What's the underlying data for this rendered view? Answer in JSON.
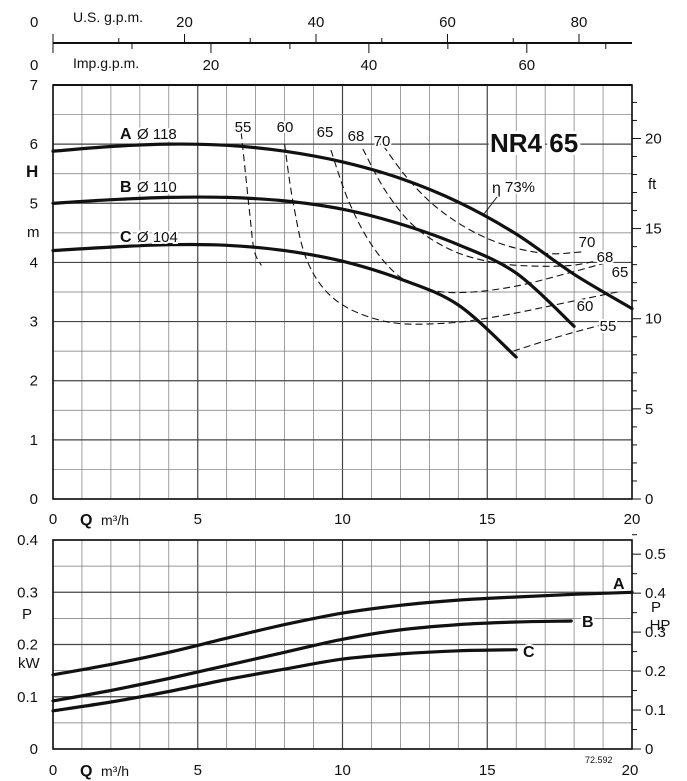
{
  "chart_data": [
    {
      "type": "line",
      "title": "NR4 65",
      "x_label_symbol": "Q",
      "x_label_unit": "m³/h",
      "x_ticks": [
        "0",
        "5",
        "10",
        "15",
        "20"
      ],
      "xlim": [
        0,
        20
      ],
      "y_label_symbol": "H",
      "y_label_unit": "m",
      "y_ticks": [
        "0",
        "1",
        "2",
        "3",
        "4",
        "5",
        "6",
        "7"
      ],
      "ylim": [
        0,
        7
      ],
      "y2_label": "ft",
      "y2_ticks": [
        "0",
        "5",
        "10",
        "15",
        "20"
      ],
      "top_axis_1": {
        "label": "U.S. g.p.m.",
        "ticks": [
          "0",
          "20",
          "40",
          "60",
          "80"
        ]
      },
      "top_axis_2": {
        "label": "Imp.g.p.m.",
        "ticks": [
          "0",
          "20",
          "40",
          "60"
        ]
      },
      "grid": true,
      "series": [
        {
          "name": "A",
          "diameter": "Ø 118",
          "points": [
            [
              0,
              5.88
            ],
            [
              2,
              5.96
            ],
            [
              4,
              6.0
            ],
            [
              6,
              5.98
            ],
            [
              8,
              5.88
            ],
            [
              10,
              5.7
            ],
            [
              12,
              5.42
            ],
            [
              14,
              5.02
            ],
            [
              16,
              4.48
            ],
            [
              18,
              3.8
            ],
            [
              20,
              3.22
            ]
          ]
        },
        {
          "name": "B",
          "diameter": "Ø 110",
          "points": [
            [
              0,
              5.0
            ],
            [
              2,
              5.06
            ],
            [
              4,
              5.1
            ],
            [
              6,
              5.1
            ],
            [
              8,
              5.04
            ],
            [
              10,
              4.9
            ],
            [
              12,
              4.65
            ],
            [
              14,
              4.3
            ],
            [
              16,
              3.82
            ],
            [
              18,
              2.92
            ]
          ]
        },
        {
          "name": "C",
          "diameter": "Ø 104",
          "points": [
            [
              0,
              4.2
            ],
            [
              2,
              4.26
            ],
            [
              4,
              4.3
            ],
            [
              6,
              4.29
            ],
            [
              8,
              4.2
            ],
            [
              10,
              4.02
            ],
            [
              12,
              3.72
            ],
            [
              14,
              3.28
            ],
            [
              16,
              2.4
            ]
          ]
        }
      ],
      "efficiency_symbol": "η",
      "efficiency_lines": [
        {
          "label": "55",
          "points": [
            [
              6.5,
              6.2
            ],
            [
              6.65,
              5.5
            ],
            [
              6.8,
              4.8
            ],
            [
              6.95,
              4.2
            ],
            [
              7.2,
              3.95
            ]
          ]
        },
        {
          "label": "60",
          "points": [
            [
              8.0,
              6.0
            ],
            [
              8.3,
              5.0
            ],
            [
              8.8,
              4.0
            ],
            [
              9.8,
              3.35
            ],
            [
              11.5,
              3.0
            ],
            [
              13.5,
              2.97
            ],
            [
              15.5,
              3.1
            ],
            [
              18.0,
              3.35
            ],
            [
              19.5,
              3.5
            ]
          ]
        },
        {
          "label": "65",
          "points": [
            [
              9.6,
              5.9
            ],
            [
              10.2,
              5.05
            ],
            [
              11.0,
              4.3
            ],
            [
              12.0,
              3.75
            ],
            [
              13.2,
              3.52
            ],
            [
              14.5,
              3.5
            ],
            [
              16.0,
              3.6
            ],
            [
              17.5,
              3.78
            ],
            [
              19.0,
              3.98
            ]
          ]
        },
        {
          "label": "68",
          "points": [
            [
              10.7,
              5.92
            ],
            [
              11.5,
              5.2
            ],
            [
              12.5,
              4.6
            ],
            [
              13.8,
              4.2
            ],
            [
              15.2,
              4.0
            ],
            [
              16.5,
              3.94
            ],
            [
              17.9,
              3.95
            ],
            [
              19.0,
              4.05
            ]
          ]
        },
        {
          "label": "70",
          "points": [
            [
              11.4,
              5.98
            ],
            [
              12.2,
              5.45
            ],
            [
              13.2,
              4.95
            ],
            [
              14.4,
              4.55
            ],
            [
              15.7,
              4.28
            ],
            [
              17.1,
              4.15
            ],
            [
              18.3,
              4.18
            ]
          ]
        }
      ],
      "efficiency_end_points": [
        {
          "label": "70",
          "points": [
            [
              15.9,
              2.5
            ],
            [
              17.5,
              2.75
            ],
            [
              19.0,
              2.95
            ]
          ]
        }
      ],
      "efficiency_labels": {
        "peak": "73%",
        "right_labels": [
          "70",
          "68",
          "65",
          "60",
          "55"
        ]
      }
    },
    {
      "type": "line",
      "x_label_symbol": "Q",
      "x_label_unit": "m³/h",
      "x_ticks": [
        "0",
        "5",
        "10",
        "15",
        "20"
      ],
      "xlim": [
        0,
        20
      ],
      "y_label": "P",
      "y_unit": "kW",
      "y_ticks": [
        "0",
        "0.1",
        "0.2",
        "0.3",
        "0.4"
      ],
      "ylim": [
        0,
        0.4
      ],
      "y2_label_top": "P",
      "y2_label_bottom": "HP",
      "y2_ticks": [
        "0",
        "0.1",
        "0.2",
        "0.3",
        "0.4",
        "0.5"
      ],
      "grid": true,
      "drawing_number": "72.592",
      "series": [
        {
          "name": "A",
          "points": [
            [
              0,
              0.142
            ],
            [
              2,
              0.162
            ],
            [
              4,
              0.185
            ],
            [
              6,
              0.212
            ],
            [
              8,
              0.238
            ],
            [
              10,
              0.26
            ],
            [
              12,
              0.275
            ],
            [
              14,
              0.285
            ],
            [
              16,
              0.291
            ],
            [
              18,
              0.296
            ],
            [
              20,
              0.3
            ]
          ]
        },
        {
          "name": "B",
          "points": [
            [
              0,
              0.092
            ],
            [
              2,
              0.112
            ],
            [
              4,
              0.135
            ],
            [
              6,
              0.16
            ],
            [
              8,
              0.185
            ],
            [
              10,
              0.21
            ],
            [
              12,
              0.228
            ],
            [
              14,
              0.238
            ],
            [
              16,
              0.243
            ],
            [
              17.9,
              0.245
            ]
          ]
        },
        {
          "name": "C",
          "points": [
            [
              0,
              0.073
            ],
            [
              2,
              0.09
            ],
            [
              4,
              0.11
            ],
            [
              6,
              0.133
            ],
            [
              8,
              0.153
            ],
            [
              10,
              0.172
            ],
            [
              12,
              0.182
            ],
            [
              14,
              0.188
            ],
            [
              16,
              0.19
            ]
          ]
        }
      ]
    }
  ]
}
